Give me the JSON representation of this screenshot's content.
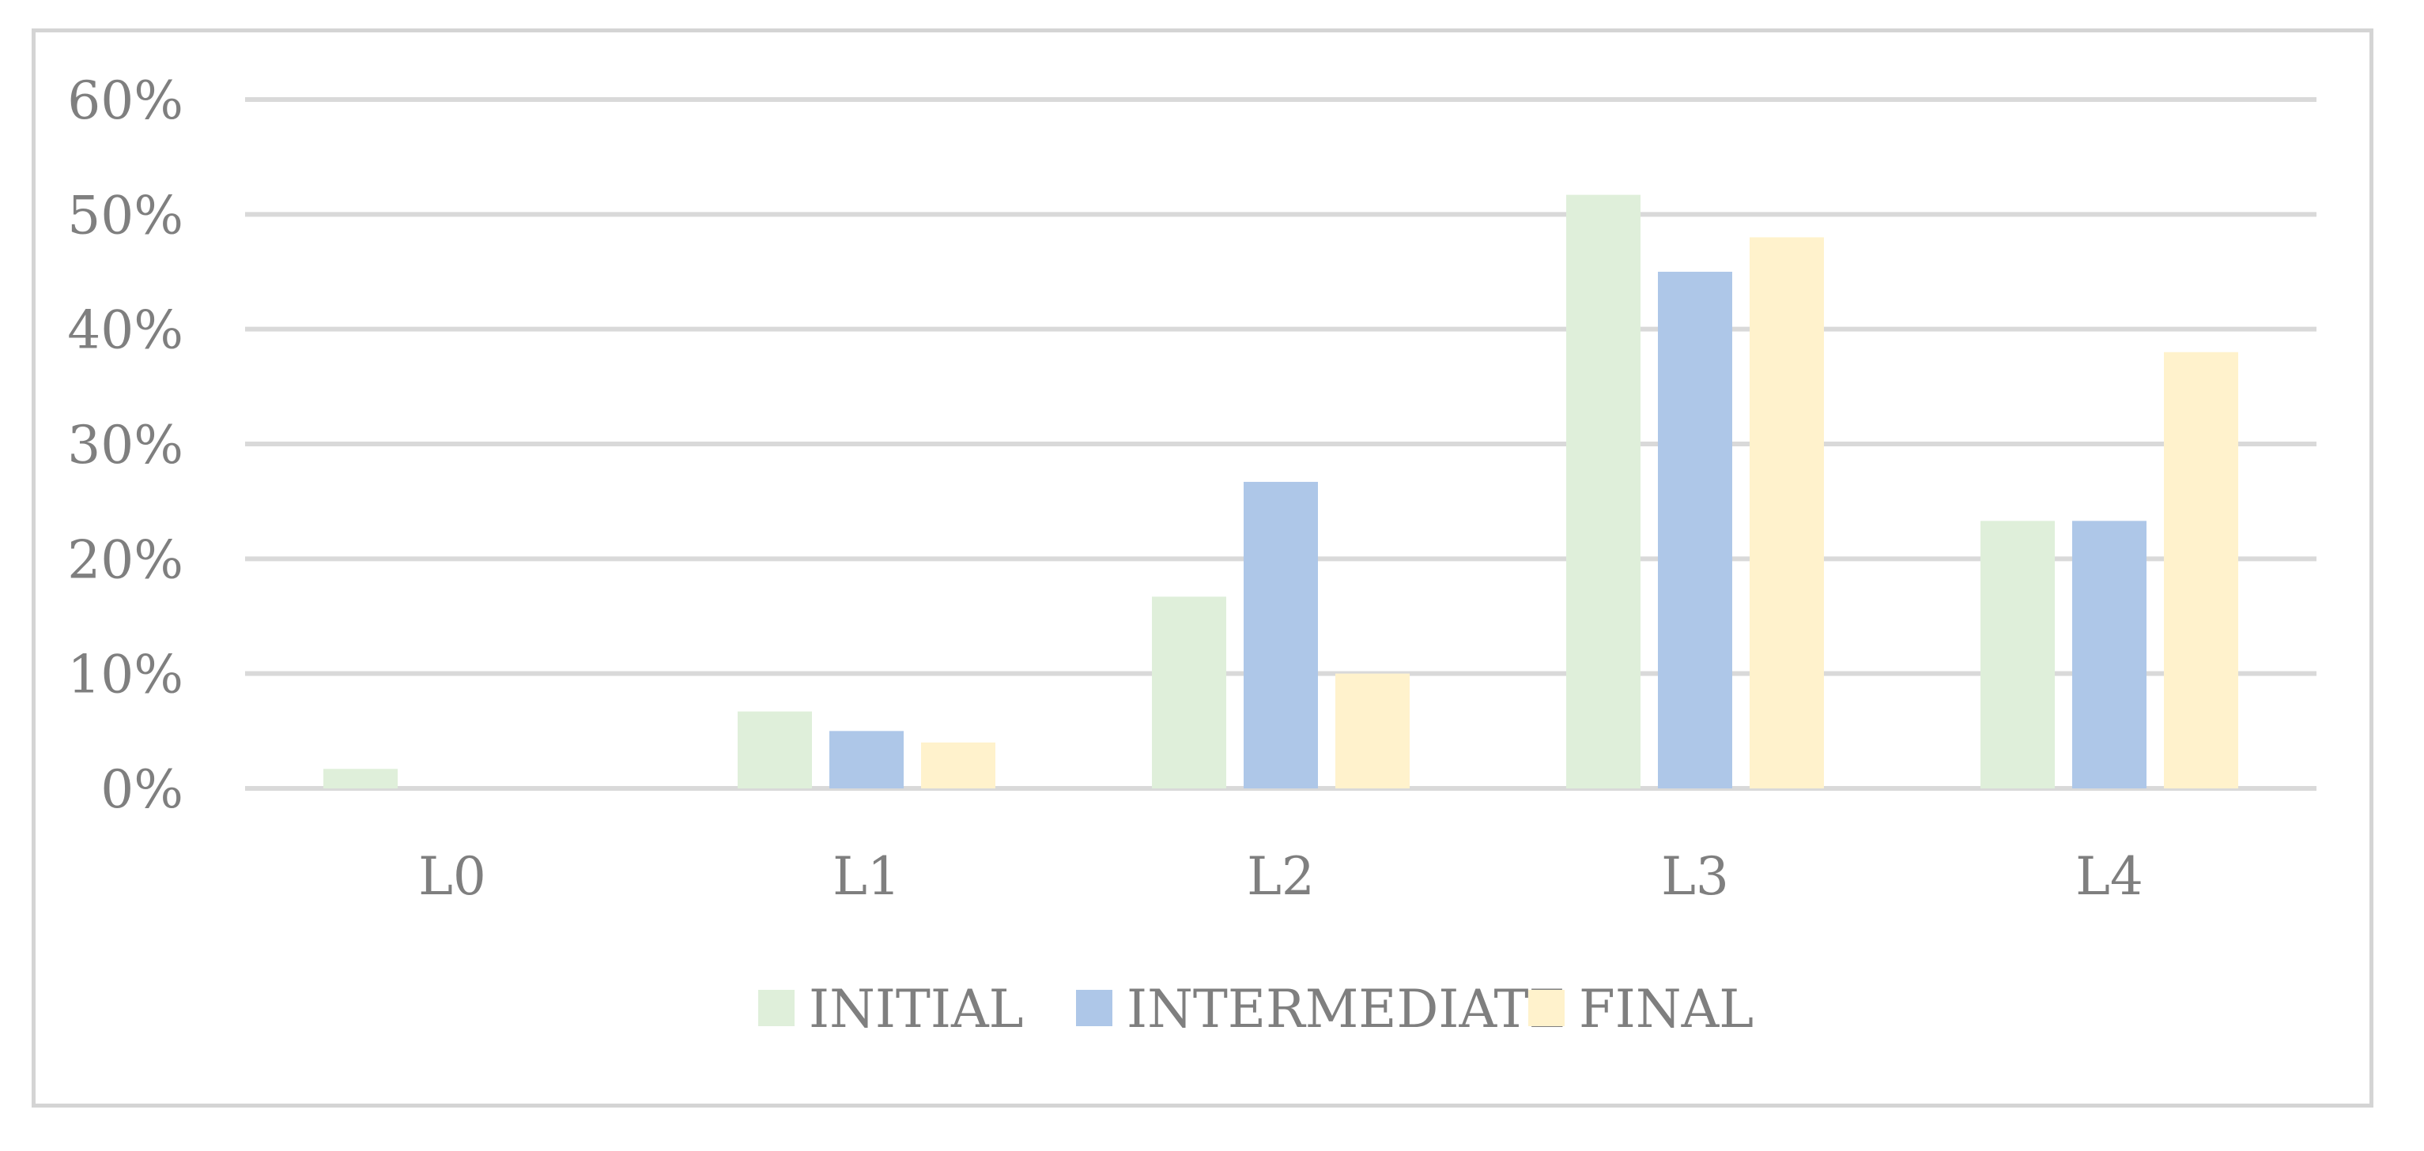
{
  "chart_data": {
    "type": "bar",
    "categories": [
      "L0",
      "L1",
      "L2",
      "L3",
      "L4"
    ],
    "series": [
      {
        "name": "INITIAL",
        "color": "#dfefda",
        "values": [
          1.7,
          6.7,
          16.7,
          51.7,
          23.3
        ]
      },
      {
        "name": "INTERMEDIATE",
        "color": "#aec7e8",
        "values": [
          0,
          5.0,
          26.7,
          45.0,
          23.3
        ]
      },
      {
        "name": "FINAL",
        "color": "#fff2cc",
        "values": [
          0,
          4.0,
          10.0,
          48.0,
          38.0
        ]
      }
    ],
    "y_ticks": [
      "0%",
      "10%",
      "20%",
      "30%",
      "40%",
      "50%",
      "60%"
    ],
    "ylim": [
      0,
      60
    ],
    "grid": true,
    "legend_position": "bottom",
    "gridline_color": "#d9d9d9",
    "text_color": "#7f7f7f"
  }
}
